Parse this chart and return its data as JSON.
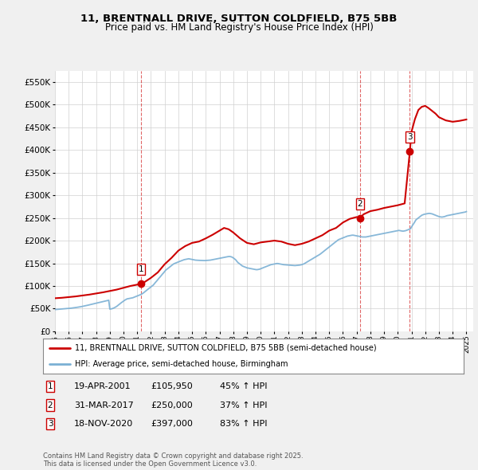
{
  "title1": "11, BRENTNALL DRIVE, SUTTON COLDFIELD, B75 5BB",
  "title2": "Price paid vs. HM Land Registry's House Price Index (HPI)",
  "legend_label1": "11, BRENTNALL DRIVE, SUTTON COLDFIELD, B75 5BB (semi-detached house)",
  "legend_label2": "HPI: Average price, semi-detached house, Birmingham",
  "footnote1": "Contains HM Land Registry data © Crown copyright and database right 2025.",
  "footnote2": "This data is licensed under the Open Government Licence v3.0.",
  "sale_prices": [
    105950,
    250000,
    397000
  ],
  "sale_years": [
    2001.29,
    2017.25,
    2020.88
  ],
  "sale_labels": [
    "1",
    "2",
    "3"
  ],
  "sale_table": [
    {
      "num": "1",
      "date": "19-APR-2001",
      "price": "£105,950",
      "change": "45% ↑ HPI"
    },
    {
      "num": "2",
      "date": "31-MAR-2017",
      "price": "£250,000",
      "change": "37% ↑ HPI"
    },
    {
      "num": "3",
      "date": "18-NOV-2020",
      "price": "£397,000",
      "change": "83% ↑ HPI"
    }
  ],
  "hpi_x": [
    1995.0,
    1995.08,
    1995.17,
    1995.25,
    1995.33,
    1995.42,
    1995.5,
    1995.58,
    1995.67,
    1995.75,
    1995.83,
    1995.92,
    1996.0,
    1996.08,
    1996.17,
    1996.25,
    1996.33,
    1996.42,
    1996.5,
    1996.58,
    1996.67,
    1996.75,
    1996.83,
    1996.92,
    1997.0,
    1997.08,
    1997.17,
    1997.25,
    1997.33,
    1997.42,
    1997.5,
    1997.58,
    1997.67,
    1997.75,
    1997.83,
    1997.92,
    1998.0,
    1998.08,
    1998.17,
    1998.25,
    1998.33,
    1998.42,
    1998.5,
    1998.58,
    1998.67,
    1998.75,
    1998.83,
    1998.92,
    1999.0,
    1999.08,
    1999.17,
    1999.25,
    1999.33,
    1999.42,
    1999.5,
    1999.58,
    1999.67,
    1999.75,
    1999.83,
    1999.92,
    2000.0,
    2000.08,
    2000.17,
    2000.25,
    2000.33,
    2000.42,
    2000.5,
    2000.58,
    2000.67,
    2000.75,
    2000.83,
    2000.92,
    2001.0,
    2001.08,
    2001.17,
    2001.25,
    2001.33,
    2001.42,
    2001.5,
    2001.58,
    2001.67,
    2001.75,
    2001.83,
    2001.92,
    2002.0,
    2002.08,
    2002.17,
    2002.25,
    2002.33,
    2002.42,
    2002.5,
    2002.58,
    2002.67,
    2002.75,
    2002.83,
    2002.92,
    2003.0,
    2003.08,
    2003.17,
    2003.25,
    2003.33,
    2003.42,
    2003.5,
    2003.58,
    2003.67,
    2003.75,
    2003.83,
    2003.92,
    2004.0,
    2004.08,
    2004.17,
    2004.25,
    2004.33,
    2004.42,
    2004.5,
    2004.58,
    2004.67,
    2004.75,
    2004.83,
    2004.92,
    2005.0,
    2005.08,
    2005.17,
    2005.25,
    2005.33,
    2005.42,
    2005.5,
    2005.58,
    2005.67,
    2005.75,
    2005.83,
    2005.92,
    2006.0,
    2006.08,
    2006.17,
    2006.25,
    2006.33,
    2006.42,
    2006.5,
    2006.58,
    2006.67,
    2006.75,
    2006.83,
    2006.92,
    2007.0,
    2007.08,
    2007.17,
    2007.25,
    2007.33,
    2007.42,
    2007.5,
    2007.58,
    2007.67,
    2007.75,
    2007.83,
    2007.92,
    2008.0,
    2008.08,
    2008.17,
    2008.25,
    2008.33,
    2008.42,
    2008.5,
    2008.58,
    2008.67,
    2008.75,
    2008.83,
    2008.92,
    2009.0,
    2009.08,
    2009.17,
    2009.25,
    2009.33,
    2009.42,
    2009.5,
    2009.58,
    2009.67,
    2009.75,
    2009.83,
    2009.92,
    2010.0,
    2010.08,
    2010.17,
    2010.25,
    2010.33,
    2010.42,
    2010.5,
    2010.58,
    2010.67,
    2010.75,
    2010.83,
    2010.92,
    2011.0,
    2011.08,
    2011.17,
    2011.25,
    2011.33,
    2011.42,
    2011.5,
    2011.58,
    2011.67,
    2011.75,
    2011.83,
    2011.92,
    2012.0,
    2012.08,
    2012.17,
    2012.25,
    2012.33,
    2012.42,
    2012.5,
    2012.58,
    2012.67,
    2012.75,
    2012.83,
    2012.92,
    2013.0,
    2013.08,
    2013.17,
    2013.25,
    2013.33,
    2013.42,
    2013.5,
    2013.58,
    2013.67,
    2013.75,
    2013.83,
    2013.92,
    2014.0,
    2014.08,
    2014.17,
    2014.25,
    2014.33,
    2014.42,
    2014.5,
    2014.58,
    2014.67,
    2014.75,
    2014.83,
    2014.92,
    2015.0,
    2015.08,
    2015.17,
    2015.25,
    2015.33,
    2015.42,
    2015.5,
    2015.58,
    2015.67,
    2015.75,
    2015.83,
    2015.92,
    2016.0,
    2016.08,
    2016.17,
    2016.25,
    2016.33,
    2016.42,
    2016.5,
    2016.58,
    2016.67,
    2016.75,
    2016.83,
    2016.92,
    2017.0,
    2017.08,
    2017.17,
    2017.25,
    2017.33,
    2017.42,
    2017.5,
    2017.58,
    2017.67,
    2017.75,
    2017.83,
    2017.92,
    2018.0,
    2018.08,
    2018.17,
    2018.25,
    2018.33,
    2018.42,
    2018.5,
    2018.58,
    2018.67,
    2018.75,
    2018.83,
    2018.92,
    2019.0,
    2019.08,
    2019.17,
    2019.25,
    2019.33,
    2019.42,
    2019.5,
    2019.58,
    2019.67,
    2019.75,
    2019.83,
    2019.92,
    2020.0,
    2020.08,
    2020.17,
    2020.25,
    2020.33,
    2020.42,
    2020.5,
    2020.58,
    2020.67,
    2020.75,
    2020.83,
    2020.92,
    2021.0,
    2021.08,
    2021.17,
    2021.25,
    2021.33,
    2021.42,
    2021.5,
    2021.58,
    2021.67,
    2021.75,
    2021.83,
    2021.92,
    2022.0,
    2022.08,
    2022.17,
    2022.25,
    2022.33,
    2022.42,
    2022.5,
    2022.58,
    2022.67,
    2022.75,
    2022.83,
    2022.92,
    2023.0,
    2023.08,
    2023.17,
    2023.25,
    2023.33,
    2023.42,
    2023.5,
    2023.58,
    2023.67,
    2023.75,
    2023.83,
    2023.92,
    2024.0,
    2024.08,
    2024.17,
    2024.25,
    2024.33,
    2024.42,
    2024.5,
    2024.58,
    2024.67,
    2024.75,
    2024.83,
    2024.92,
    2025.0
  ],
  "hpi_y": [
    48000,
    48200,
    48400,
    48600,
    48800,
    49000,
    49200,
    49400,
    49600,
    49800,
    50000,
    50200,
    50500,
    50800,
    51100,
    51400,
    51700,
    52000,
    52400,
    52800,
    53200,
    53600,
    54000,
    54500,
    55000,
    55500,
    56000,
    56600,
    57200,
    57800,
    58400,
    59000,
    59600,
    60200,
    60800,
    61400,
    62000,
    62600,
    63200,
    63800,
    64400,
    65000,
    65600,
    66200,
    66800,
    67400,
    68000,
    68600,
    49000,
    49500,
    50000,
    51000,
    52000,
    53500,
    55000,
    57000,
    59000,
    61000,
    63000,
    65000,
    67000,
    68500,
    70000,
    71500,
    72000,
    72500,
    73000,
    73500,
    74000,
    75000,
    76000,
    77000,
    78000,
    79000,
    80000,
    81000,
    82500,
    84000,
    86000,
    88000,
    90000,
    92000,
    94000,
    96000,
    98000,
    100000,
    102000,
    105000,
    108000,
    111000,
    114000,
    117000,
    120000,
    123000,
    126000,
    129000,
    132000,
    135000,
    137000,
    139000,
    141000,
    143000,
    145000,
    147000,
    149000,
    150000,
    151000,
    152000,
    153000,
    154000,
    155000,
    156000,
    157000,
    158000,
    158500,
    159000,
    159500,
    160000,
    159500,
    159000,
    158500,
    158000,
    157500,
    157000,
    156800,
    156600,
    156500,
    156400,
    156300,
    156200,
    156100,
    156000,
    156200,
    156400,
    156600,
    156800,
    157000,
    157500,
    158000,
    158500,
    159000,
    159500,
    160000,
    160500,
    161000,
    161500,
    162000,
    162500,
    163000,
    163500,
    164000,
    164500,
    165000,
    165000,
    164500,
    163500,
    162000,
    160000,
    158000,
    155000,
    152000,
    150000,
    148000,
    146000,
    144000,
    143000,
    142000,
    141000,
    140000,
    139500,
    139000,
    138500,
    138000,
    137500,
    137000,
    136500,
    136000,
    136000,
    136500,
    137000,
    138000,
    139000,
    140000,
    141000,
    142000,
    143000,
    144000,
    145000,
    146000,
    147000,
    147500,
    148000,
    148500,
    149000,
    149500,
    149500,
    149000,
    148500,
    148000,
    147500,
    147000,
    146800,
    146600,
    146500,
    146000,
    145800,
    145600,
    145400,
    145200,
    145000,
    145000,
    145200,
    145500,
    145800,
    146000,
    146500,
    147000,
    148000,
    149000,
    150500,
    152000,
    153500,
    155000,
    156500,
    158000,
    159500,
    161000,
    162500,
    164000,
    165500,
    167000,
    168500,
    170000,
    172000,
    174000,
    176000,
    178000,
    180000,
    182000,
    184000,
    186000,
    188000,
    190000,
    192000,
    194000,
    196000,
    198000,
    200000,
    202000,
    203000,
    204000,
    205000,
    206000,
    207000,
    208000,
    209000,
    210000,
    210500,
    211000,
    211500,
    212000,
    212000,
    211500,
    211000,
    210500,
    210000,
    209500,
    209000,
    208500,
    208000,
    208000,
    208000,
    208000,
    208500,
    209000,
    209500,
    210000,
    210500,
    211000,
    211500,
    212000,
    212500,
    213000,
    213500,
    214000,
    214500,
    215000,
    215500,
    216000,
    216500,
    217000,
    217500,
    218000,
    218500,
    219000,
    219500,
    220000,
    220500,
    221000,
    221500,
    222000,
    222500,
    222000,
    221500,
    221000,
    221000,
    221500,
    222000,
    223000,
    224000,
    225000,
    226000,
    230000,
    234000,
    238000,
    242000,
    246000,
    248000,
    250000,
    252000,
    254000,
    256000,
    257000,
    258000,
    258500,
    259000,
    259500,
    260000,
    260000,
    259500,
    259000,
    258000,
    257000,
    256000,
    255000,
    254000,
    253000,
    252500,
    252000,
    252000,
    252500,
    253000,
    254000,
    255000,
    255500,
    256000,
    256500,
    257000,
    257500,
    258000,
    258500,
    259000,
    259500,
    260000,
    260500,
    261000,
    261500,
    262000,
    262500,
    263000,
    264000
  ],
  "red_x": [
    1995.0,
    1995.5,
    1996.0,
    1996.5,
    1997.0,
    1997.5,
    1998.0,
    1998.5,
    1999.0,
    1999.5,
    2000.0,
    2000.5,
    2001.0,
    2001.29,
    2001.5,
    2002.0,
    2002.5,
    2003.0,
    2003.5,
    2004.0,
    2004.5,
    2005.0,
    2005.5,
    2006.0,
    2006.5,
    2007.0,
    2007.33,
    2007.67,
    2008.0,
    2008.5,
    2009.0,
    2009.5,
    2010.0,
    2010.5,
    2011.0,
    2011.5,
    2012.0,
    2012.5,
    2013.0,
    2013.5,
    2014.0,
    2014.5,
    2015.0,
    2015.5,
    2016.0,
    2016.5,
    2017.0,
    2017.25,
    2017.5,
    2018.0,
    2018.5,
    2019.0,
    2019.5,
    2020.0,
    2020.5,
    2020.88,
    2021.0,
    2021.25,
    2021.5,
    2021.75,
    2022.0,
    2022.25,
    2022.5,
    2022.75,
    2023.0,
    2023.5,
    2024.0,
    2024.5,
    2025.0
  ],
  "red_y": [
    73000,
    74000,
    75500,
    77000,
    79000,
    81000,
    83500,
    86000,
    89000,
    92000,
    96000,
    100000,
    103000,
    105950,
    108000,
    118000,
    130000,
    148000,
    162000,
    178000,
    188000,
    195000,
    198000,
    205000,
    213000,
    222000,
    228000,
    225000,
    218000,
    205000,
    195000,
    192000,
    196000,
    198000,
    200000,
    198000,
    193000,
    190000,
    193000,
    198000,
    205000,
    212000,
    222000,
    228000,
    240000,
    248000,
    252000,
    250000,
    258000,
    265000,
    268000,
    272000,
    275000,
    278000,
    282000,
    397000,
    440000,
    468000,
    488000,
    495000,
    497000,
    492000,
    486000,
    480000,
    472000,
    465000,
    462000,
    464000,
    467000
  ],
  "ylim": [
    0,
    575000
  ],
  "yticks": [
    0,
    50000,
    100000,
    150000,
    200000,
    250000,
    300000,
    350000,
    400000,
    450000,
    500000,
    550000
  ],
  "xlim_min": 1995.0,
  "xlim_max": 2025.5,
  "background_color": "#f0f0f0",
  "plot_bg_color": "#ffffff",
  "red_line_color": "#cc0000",
  "hpi_color": "#7ab0d4",
  "grid_color": "#d0d0d0",
  "dashed_color": "#cc0000"
}
